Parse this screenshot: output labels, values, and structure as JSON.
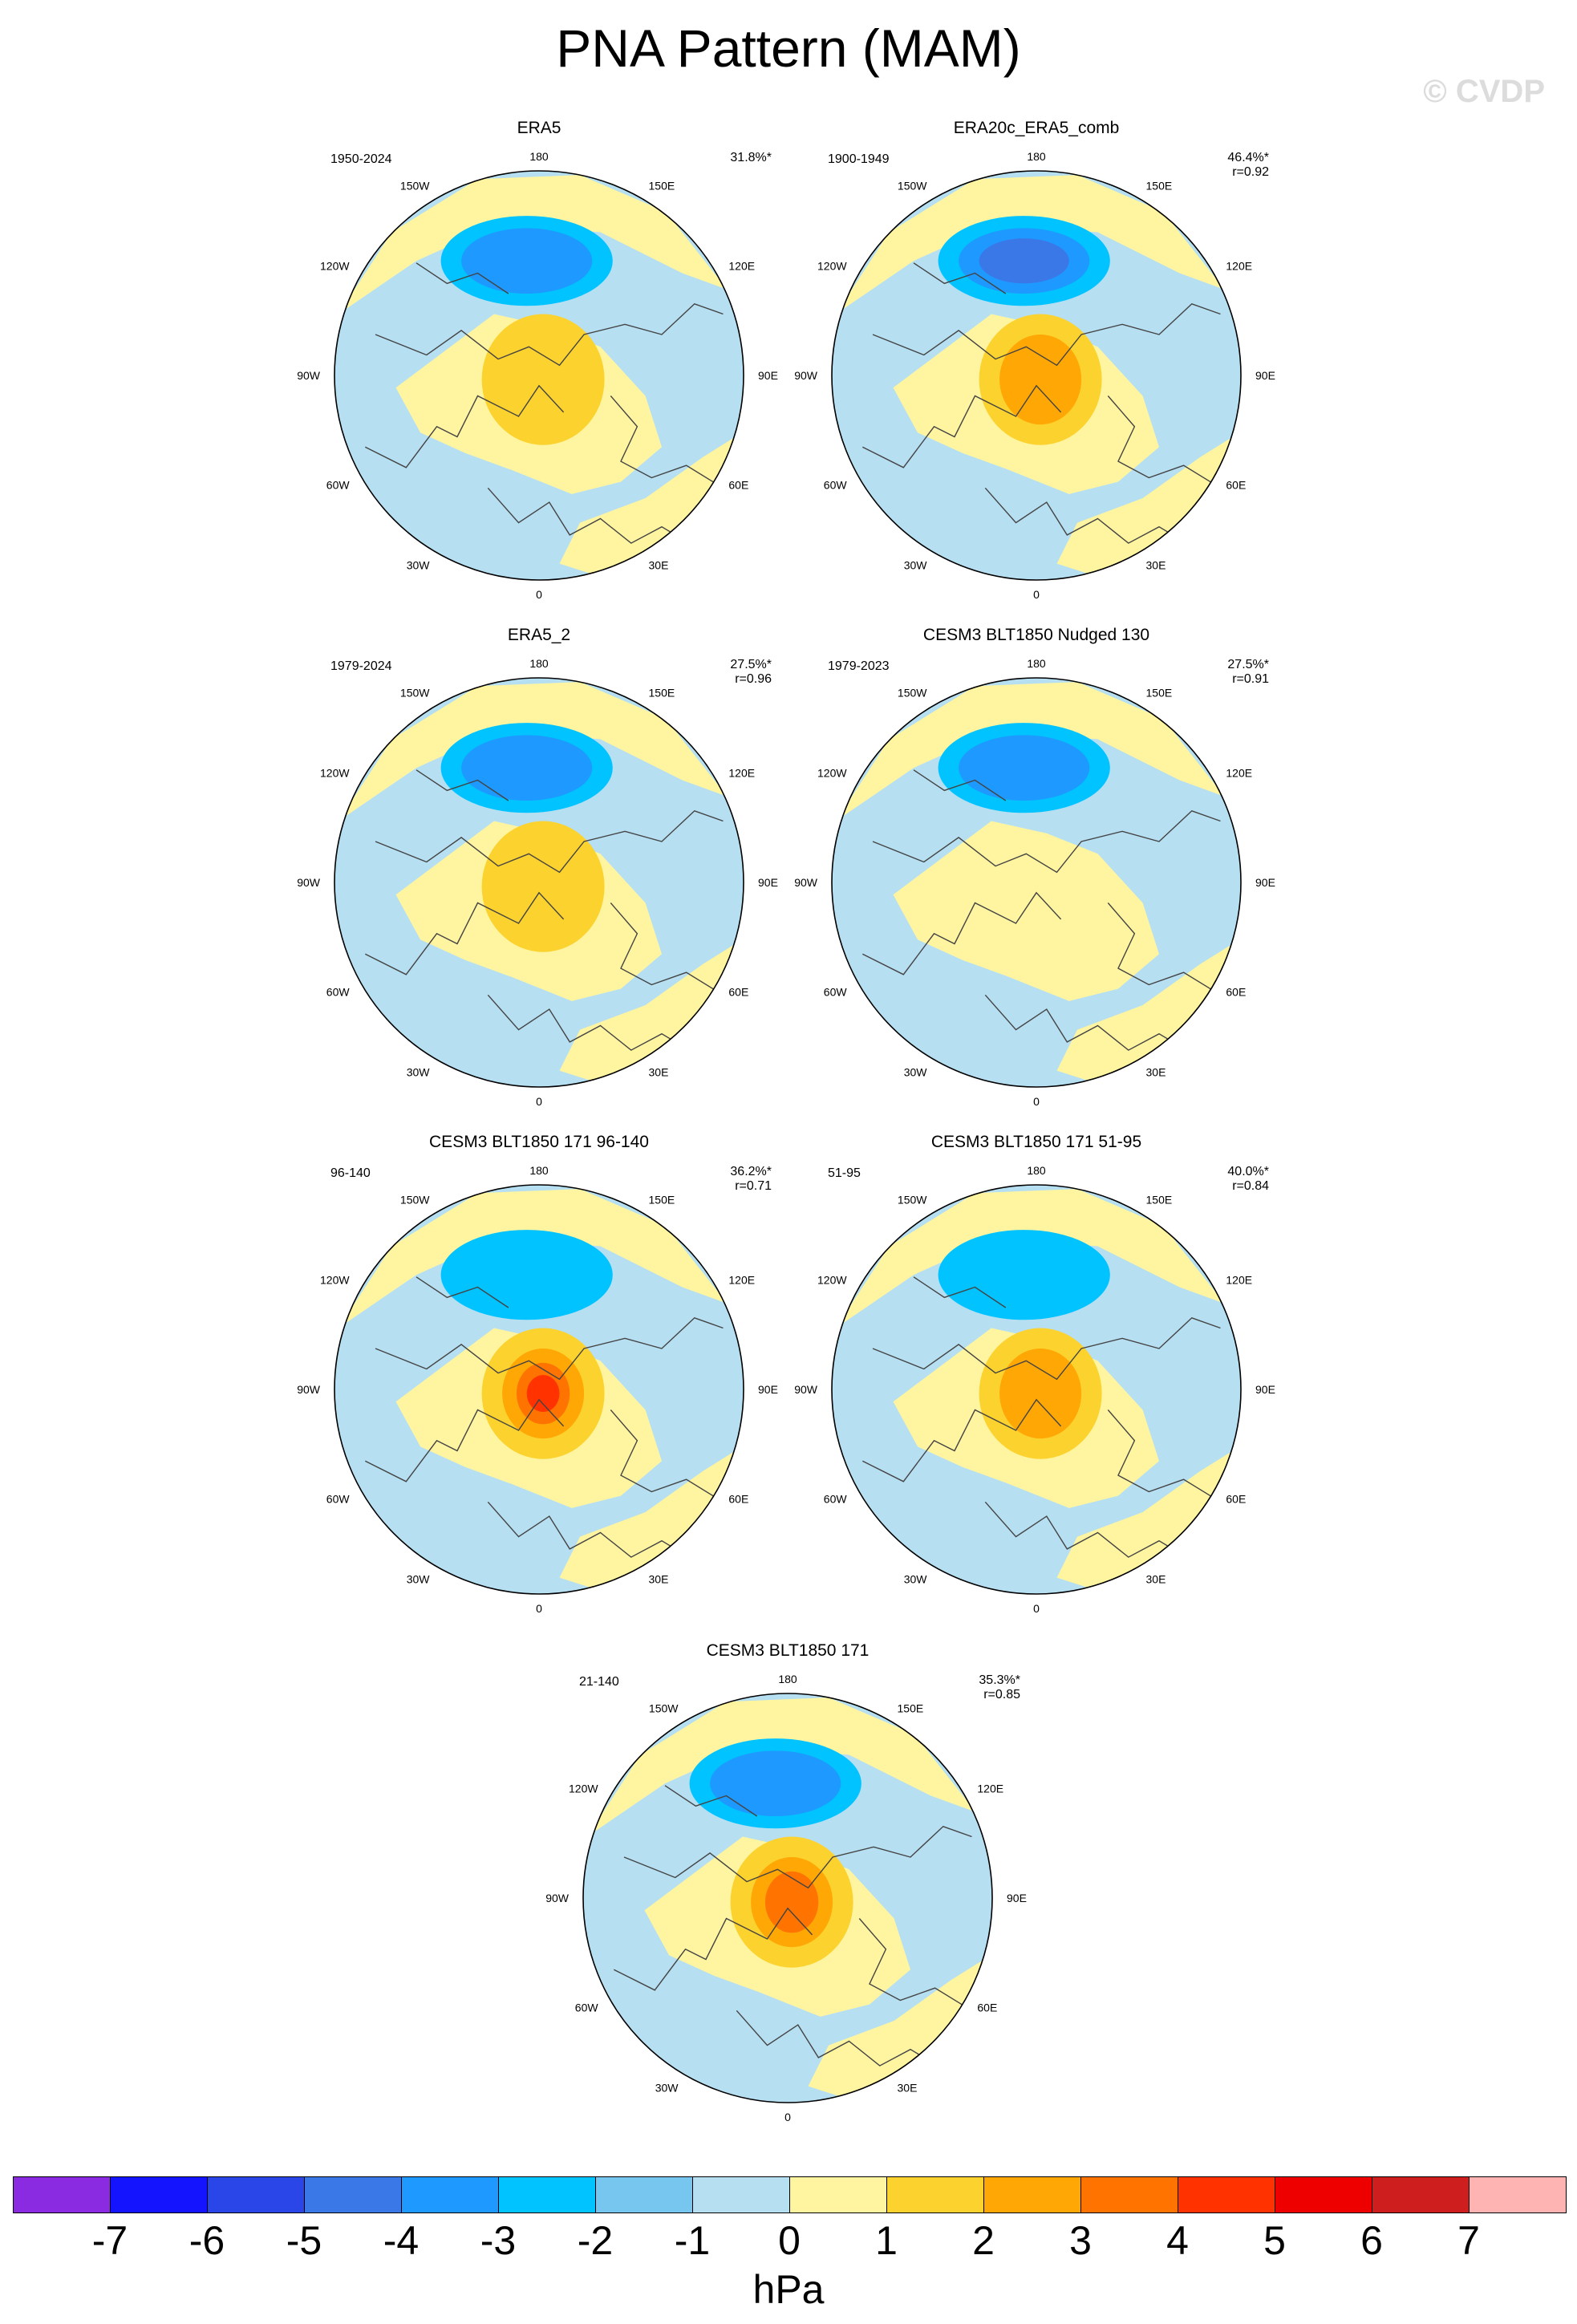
{
  "title": "PNA Pattern (MAM)",
  "watermark": "© CVDP",
  "lon_labels": [
    "180",
    "150E",
    "120E",
    "90E",
    "60E",
    "30E",
    "0",
    "30W",
    "60W",
    "90W",
    "120W",
    "150W"
  ],
  "colors": {
    "ocean": "#b6dff2",
    "coast": "#444444"
  },
  "chart_data": {
    "type": "map",
    "projection": "north-polar-stereographic",
    "units": "hPa",
    "panels": [
      {
        "title": "ERA5",
        "period": "1950-2024",
        "pct": "31.8%*",
        "r": "",
        "low_max": -3,
        "high_max": 2
      },
      {
        "title": "ERA20c_ERA5_comb",
        "period": "1900-1949",
        "pct": "46.4%*",
        "r": "r=0.92",
        "low_max": -4,
        "high_max": 3
      },
      {
        "title": "ERA5_2",
        "period": "1979-2024",
        "pct": "27.5%*",
        "r": "r=0.96",
        "low_max": -3,
        "high_max": 2
      },
      {
        "title": "CESM3 BLT1850 Nudged 130",
        "period": "1979-2023",
        "pct": "27.5%*",
        "r": "r=0.91",
        "low_max": -3,
        "high_max": 1
      },
      {
        "title": "CESM3 BLT1850 171 96-140",
        "period": "96-140",
        "pct": "36.2%*",
        "r": "r=0.71",
        "low_max": -2,
        "high_max": 5
      },
      {
        "title": "CESM3 BLT1850 171 51-95",
        "period": "51-95",
        "pct": "40.0%*",
        "r": "r=0.84",
        "low_max": -2,
        "high_max": 3
      },
      {
        "title": "CESM3 BLT1850 171",
        "period": "21-140",
        "pct": "35.3%*",
        "r": "r=0.85",
        "low_max": -3,
        "high_max": 4
      }
    ],
    "colorbar": {
      "labels": [
        "-7",
        "-6",
        "-5",
        "-4",
        "-3",
        "-2",
        "-1",
        "0",
        "1",
        "2",
        "3",
        "4",
        "5",
        "6",
        "7"
      ],
      "colors": [
        "#8a2be2",
        "#1414ff",
        "#2a45e8",
        "#3a78e8",
        "#1e99ff",
        "#00c3ff",
        "#76c6f0",
        "#b6dff2",
        "#fff5a0",
        "#fcd22e",
        "#ffa705",
        "#ff7300",
        "#ff3200",
        "#ee0000",
        "#cf1e1e",
        "#ffb4b4"
      ]
    }
  }
}
